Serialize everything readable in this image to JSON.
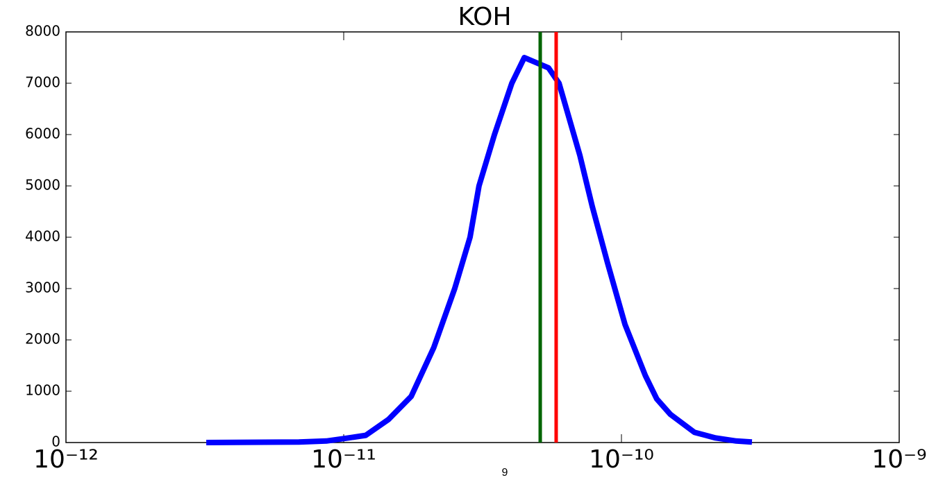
{
  "chart_data": {
    "type": "line",
    "title": "KOH",
    "x": [
      3.2e-12,
      6.9e-12,
      8.66e-12,
      1.01e-11,
      1.2e-11,
      1.45e-11,
      1.75e-11,
      2.11e-11,
      2.51e-11,
      2.85e-11,
      3.07e-11,
      3.49e-11,
      4.03e-11,
      4.47e-11,
      5.46e-11,
      5.96e-11,
      7.08e-11,
      7.85e-11,
      8.91e-11,
      1.03e-10,
      1.22e-10,
      1.34e-10,
      1.5e-10,
      1.68e-10,
      1.83e-10,
      2.18e-10,
      2.59e-10,
      2.95e-10
    ],
    "series": [
      {
        "color": "#0000ff",
        "values": [
          0,
          10,
          30,
          80,
          140,
          450,
          900,
          1850,
          3000,
          4000,
          5000,
          6000,
          7000,
          7500,
          7300,
          7000,
          5600,
          4600,
          3500,
          2300,
          1300,
          850,
          550,
          350,
          200,
          90,
          30,
          10
        ]
      }
    ],
    "vlines": [
      {
        "x": 5.1e-11,
        "color": "#006400"
      },
      {
        "x": 5.82e-11,
        "color": "#ff0000"
      }
    ],
    "xscale": "log",
    "xlim": [
      1e-12,
      1e-09
    ],
    "xticks": [
      {
        "value": 1e-12,
        "label": "10⁻¹²"
      },
      {
        "value": 1e-11,
        "label": "10⁻¹¹"
      },
      {
        "value": 1e-10,
        "label": "10⁻¹⁰"
      },
      {
        "value": 1e-09,
        "label": "10⁻⁹"
      }
    ],
    "ylim": [
      0,
      8000
    ],
    "yticks": [
      0,
      1000,
      2000,
      3000,
      4000,
      5000,
      6000,
      7000,
      8000
    ],
    "grid": false
  },
  "page_number": "9"
}
